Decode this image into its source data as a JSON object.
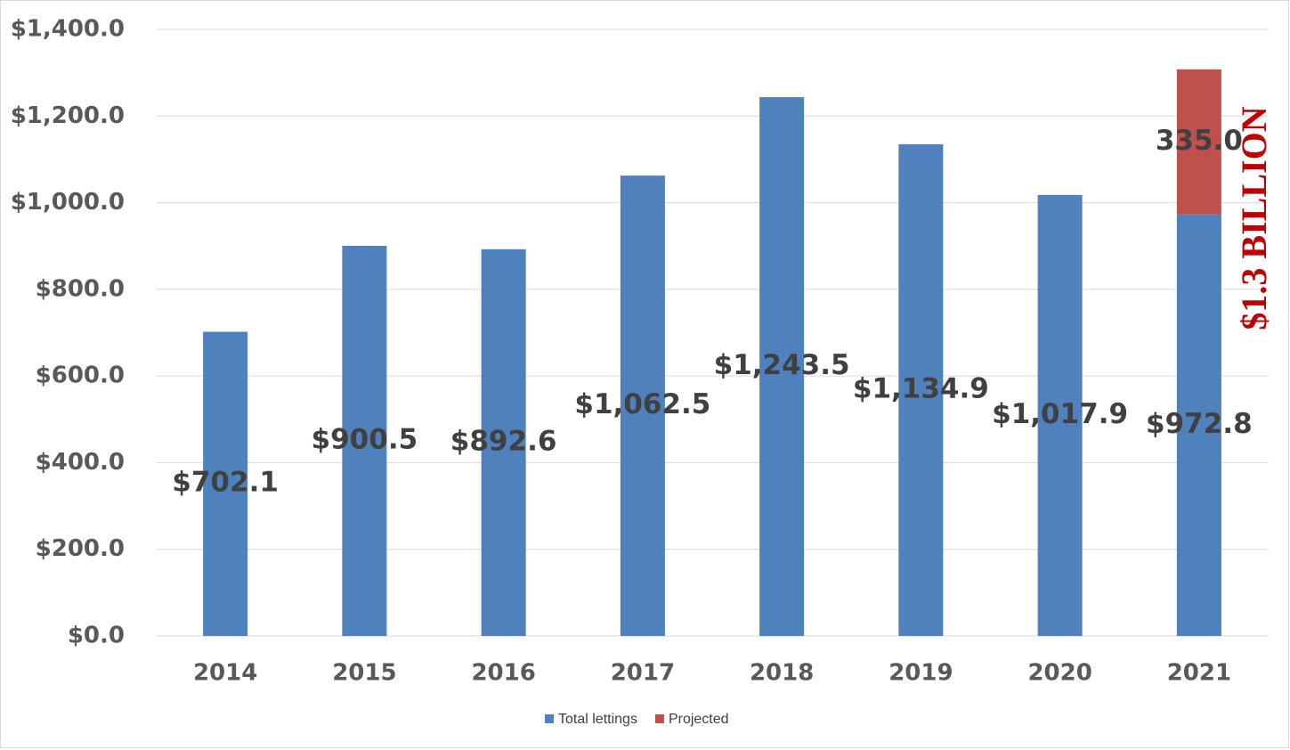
{
  "chart_data": {
    "type": "stacked-bar",
    "categories": [
      "2014",
      "2015",
      "2016",
      "2017",
      "2018",
      "2019",
      "2020",
      "2021"
    ],
    "series": [
      {
        "name": "Total lettings",
        "color": "#4f81bd",
        "values": [
          702.1,
          900.5,
          892.6,
          1062.5,
          1243.5,
          1134.9,
          1017.9,
          972.8
        ],
        "value_labels": [
          "$702.1",
          "$900.5",
          "$892.6",
          "$1,062.5",
          "$1,243.5",
          "$1,134.9",
          "$1,017.9",
          "$972.8"
        ]
      },
      {
        "name": "Projected",
        "color": "#c0504d",
        "values": [
          null,
          null,
          null,
          null,
          null,
          null,
          null,
          335.0
        ],
        "value_labels": [
          null,
          null,
          null,
          null,
          null,
          null,
          null,
          "335.0"
        ]
      }
    ],
    "ylim": [
      0,
      1400
    ],
    "yticks": [
      {
        "value": 0,
        "label": "$0.0"
      },
      {
        "value": 200,
        "label": "$200.0"
      },
      {
        "value": 400,
        "label": "$400.0"
      },
      {
        "value": 600,
        "label": "$600.0"
      },
      {
        "value": 800,
        "label": "$800.0"
      },
      {
        "value": 1000,
        "label": "$1,000.0"
      },
      {
        "value": 1200,
        "label": "$1,200.0"
      },
      {
        "value": 1400,
        "label": "$1,400.0"
      }
    ],
    "grid": true,
    "legend": "bottom",
    "annotation": "$1.3 BILLION"
  }
}
